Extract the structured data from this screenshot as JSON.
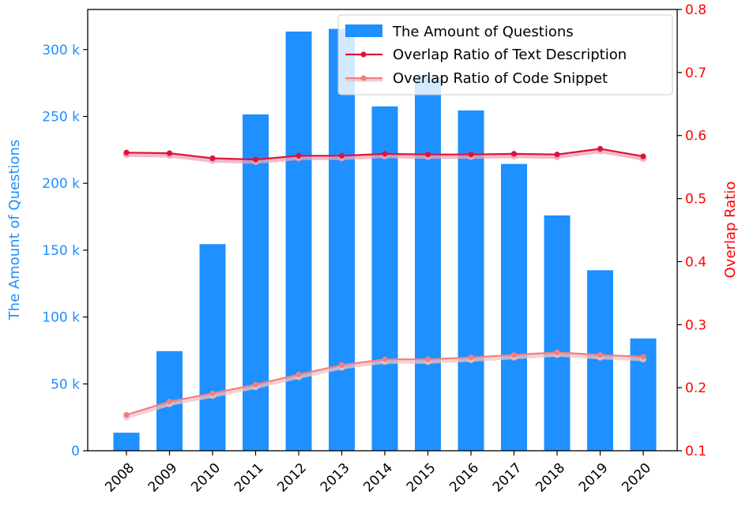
{
  "chart_data": {
    "type": "bar",
    "categories": [
      "2008",
      "2009",
      "2010",
      "2011",
      "2012",
      "2013",
      "2014",
      "2015",
      "2016",
      "2017",
      "2018",
      "2019",
      "2020"
    ],
    "bar_series": {
      "name": "The Amount of Questions",
      "color": "#1e90ff",
      "values": [
        13500,
        74500,
        154500,
        251500,
        313500,
        315500,
        257500,
        279500,
        254500,
        214500,
        176000,
        135000,
        84000
      ]
    },
    "line_series": [
      {
        "name": "Overlap Ratio of Text Description",
        "color": "#dc143c",
        "values": [
          0.573,
          0.572,
          0.564,
          0.562,
          0.568,
          0.568,
          0.571,
          0.57,
          0.57,
          0.571,
          0.57,
          0.579,
          0.567
        ]
      },
      {
        "name": "Overlap Ratio of Code Snippet",
        "color": "#f08080",
        "values": [
          0.157,
          0.178,
          0.191,
          0.205,
          0.221,
          0.236,
          0.245,
          0.245,
          0.248,
          0.252,
          0.256,
          0.252,
          0.249
        ]
      }
    ],
    "ylabel_left": "The Amount of Questions",
    "ylabel_right": "Overlap Ratio",
    "ylim_left": [
      0,
      330000
    ],
    "ylim_right": [
      0.1,
      0.8
    ],
    "yticks_left": [
      0,
      50000,
      100000,
      150000,
      200000,
      250000,
      300000
    ],
    "yticks_left_labels": [
      "0",
      "50 k",
      "100 k",
      "150 k",
      "200 k",
      "250 k",
      "300 k"
    ],
    "yticks_right": [
      0.1,
      0.2,
      0.3,
      0.4,
      0.5,
      0.6,
      0.7,
      0.8
    ],
    "yticks_right_labels": [
      "0.1",
      "0.2",
      "0.3",
      "0.4",
      "0.5",
      "0.6",
      "0.7",
      "0.8"
    ],
    "grid": false,
    "legend_position": "top-right"
  }
}
